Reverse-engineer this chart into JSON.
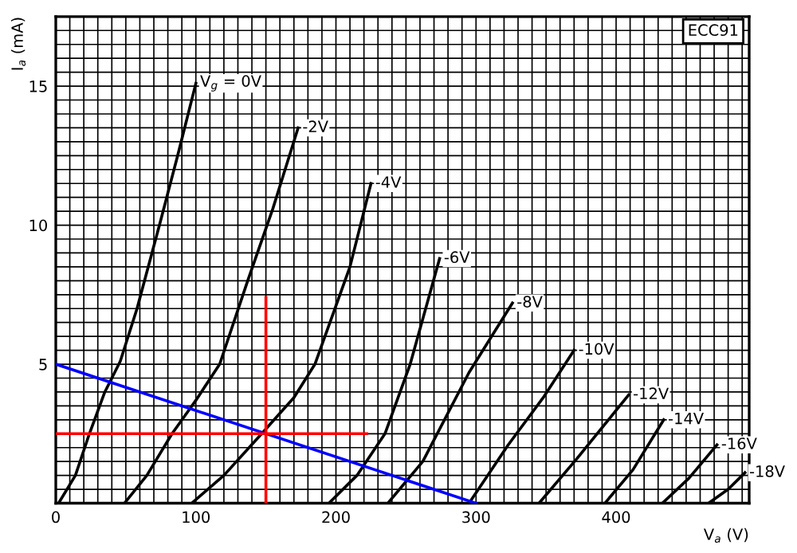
{
  "chart_data": {
    "type": "line",
    "xlabel": "V$_{a}$ (V)",
    "ylabel": "I$_{a}$ (mA)",
    "annotations": [
      "ECC91"
    ],
    "xlim": [
      0,
      495
    ],
    "ylim": [
      0,
      17.5
    ],
    "grid": true,
    "legend": false,
    "marker": "none",
    "line_style": "solid",
    "xticks": [
      0,
      {
        "value": 10,
        "label": null
      },
      {
        "value": 20,
        "label": null
      },
      {
        "value": 30,
        "label": null
      },
      {
        "value": 40,
        "label": null
      },
      {
        "value": 50,
        "label": null
      },
      {
        "value": 60,
        "label": null
      },
      {
        "value": 70,
        "label": null
      },
      {
        "value": 80,
        "label": null
      },
      {
        "value": 90,
        "label": null
      },
      100,
      {
        "value": 110,
        "label": null
      },
      {
        "value": 120,
        "label": null
      },
      {
        "value": 130,
        "label": null
      },
      {
        "value": 140,
        "label": null
      },
      {
        "value": 150,
        "label": null
      },
      {
        "value": 160,
        "label": null
      },
      {
        "value": 170,
        "label": null
      },
      {
        "value": 180,
        "label": null
      },
      {
        "value": 190,
        "label": null
      },
      200,
      {
        "value": 210,
        "label": null
      },
      {
        "value": 220,
        "label": null
      },
      {
        "value": 230,
        "label": null
      },
      {
        "value": 240,
        "label": null
      },
      {
        "value": 250,
        "label": null
      },
      {
        "value": 260,
        "label": null
      },
      {
        "value": 270,
        "label": null
      },
      {
        "value": 280,
        "label": null
      },
      {
        "value": 290,
        "label": null
      },
      300,
      {
        "value": 310,
        "label": null
      },
      {
        "value": 320,
        "label": null
      },
      {
        "value": 330,
        "label": null
      },
      {
        "value": 340,
        "label": null
      },
      {
        "value": 350,
        "label": null
      },
      {
        "value": 360,
        "label": null
      },
      {
        "value": 370,
        "label": null
      },
      {
        "value": 380,
        "label": null
      },
      {
        "value": 390,
        "label": null
      },
      400,
      {
        "value": 410,
        "label": null
      },
      {
        "value": 420,
        "label": null
      },
      {
        "value": 430,
        "label": null
      },
      {
        "value": 440,
        "label": null
      },
      {
        "value": 450,
        "label": null
      },
      {
        "value": 460,
        "label": null
      },
      {
        "value": 470,
        "label": null
      },
      {
        "value": 480,
        "label": null
      },
      {
        "value": 490,
        "label": null
      }
    ],
    "yticks": [
      {
        "value": 0,
        "label": null
      },
      {
        "value": 0.5,
        "label": null
      },
      {
        "value": 1,
        "label": null
      },
      {
        "value": 1.5,
        "label": null
      },
      {
        "value": 2,
        "label": null
      },
      {
        "value": 2.5,
        "label": null
      },
      {
        "value": 3,
        "label": null
      },
      {
        "value": 3.5,
        "label": null
      },
      {
        "value": 4,
        "label": null
      },
      {
        "value": 4.5,
        "label": null
      },
      5,
      {
        "value": 5.5,
        "label": null
      },
      {
        "value": 6,
        "label": null
      },
      {
        "value": 6.5,
        "label": null
      },
      {
        "value": 7,
        "label": null
      },
      {
        "value": 7.5,
        "label": null
      },
      {
        "value": 8,
        "label": null
      },
      {
        "value": 8.5,
        "label": null
      },
      {
        "value": 9,
        "label": null
      },
      {
        "value": 9.5,
        "label": null
      },
      10,
      {
        "value": 10.5,
        "label": null
      },
      {
        "value": 11,
        "label": null
      },
      {
        "value": 11.5,
        "label": null
      },
      {
        "value": 12,
        "label": null
      },
      {
        "value": 12.5,
        "label": null
      },
      {
        "value": 13,
        "label": null
      },
      {
        "value": 13.5,
        "label": null
      },
      {
        "value": 14,
        "label": null
      },
      {
        "value": 14.5,
        "label": null
      },
      15,
      {
        "value": 15.5,
        "label": null
      },
      {
        "value": 16,
        "label": null
      },
      {
        "value": 16.5,
        "label": null
      },
      {
        "value": 17,
        "label": null
      }
    ],
    "series": [
      {
        "name": "V$_{g}$ = 0V",
        "color": "#000000",
        "x": [
          2,
          14,
          24,
          35,
          46,
          58,
          74,
          87,
          100
        ],
        "values": [
          0,
          1,
          2.5,
          4,
          5.1,
          7,
          10,
          12.5,
          15.1
        ]
      },
      {
        "name": "-2V",
        "color": "#000000",
        "x": [
          49,
          65,
          83,
          100,
          117,
          137,
          155,
          173
        ],
        "values": [
          0,
          1,
          2.5,
          3.7,
          5,
          8,
          10.6,
          13.5
        ]
      },
      {
        "name": "-4V",
        "color": "#000000",
        "x": [
          97,
          120,
          147,
          170,
          185,
          210,
          225
        ],
        "values": [
          0,
          1,
          2.5,
          3.8,
          5,
          8.5,
          11.5
        ]
      },
      {
        "name": "-6V",
        "color": "#000000",
        "x": [
          195,
          215,
          235,
          253,
          274
        ],
        "values": [
          0,
          1,
          2.5,
          5,
          8.8
        ]
      },
      {
        "name": "-8V",
        "color": "#000000",
        "x": [
          237,
          262,
          295,
          326
        ],
        "values": [
          0,
          1.5,
          4.7,
          7.2
        ]
      },
      {
        "name": "-10V",
        "color": "#000000",
        "x": [
          295,
          323,
          348,
          370
        ],
        "values": [
          0,
          2.1,
          3.8,
          5.5
        ]
      },
      {
        "name": "-12V",
        "color": "#000000",
        "x": [
          345,
          372,
          409
        ],
        "values": [
          0,
          1.6,
          3.9
        ]
      },
      {
        "name": "-14V",
        "color": "#000000",
        "x": [
          392,
          412,
          434
        ],
        "values": [
          0,
          1.2,
          3.0
        ]
      },
      {
        "name": "-16V",
        "color": "#000000",
        "x": [
          433,
          452,
          472
        ],
        "values": [
          0,
          0.9,
          2.1
        ]
      },
      {
        "name": "-18V",
        "color": "#000000",
        "x": [
          466,
          480,
          492
        ],
        "values": [
          0,
          0.5,
          1.1
        ]
      },
      {
        "color": "#0000ff",
        "x": [
          0,
          300
        ],
        "values": [
          5,
          0
        ]
      },
      {
        "color": "#ff0000",
        "x": [
          150,
          150
        ],
        "values": [
          0,
          7.4
        ]
      },
      {
        "color": "#ff0000",
        "x": [
          0,
          222
        ],
        "values": [
          2.5,
          2.5
        ]
      }
    ]
  }
}
